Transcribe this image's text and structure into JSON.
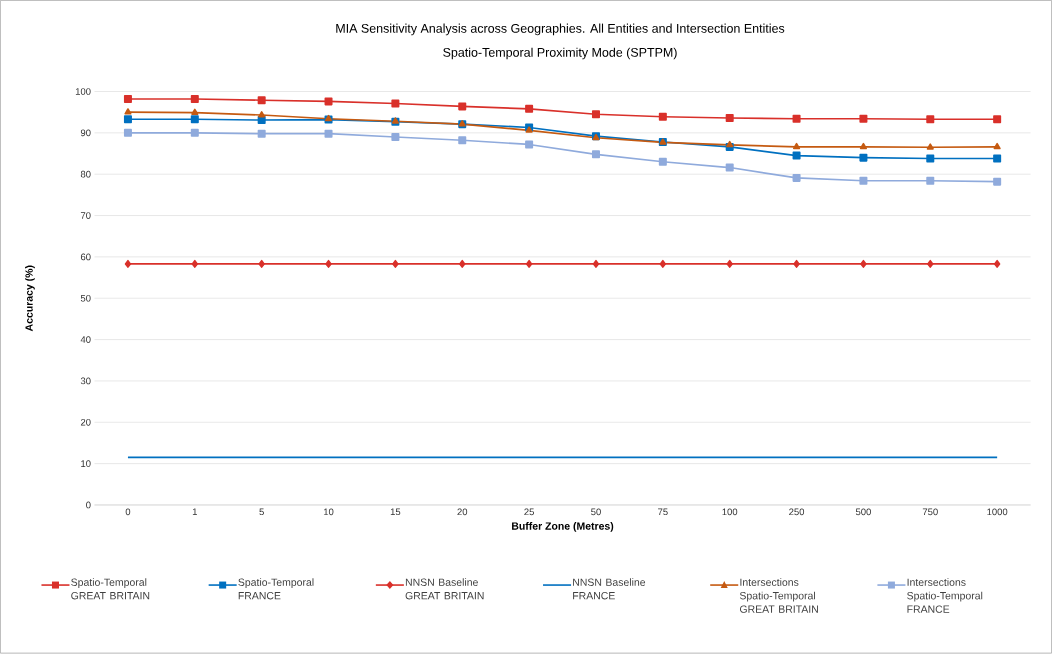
{
  "chart_data": {
    "type": "line",
    "title": "MIA Sensitivity Analysis across Geographies. All Entities and Intersection Entities",
    "subtitle": "Spatio-Temporal Proximity Mode (SPTPM)",
    "xlabel": "Buffer Zone (Metres)",
    "ylabel": "Accuracy (%)",
    "categories": [
      "0",
      "1",
      "5",
      "10",
      "15",
      "20",
      "25",
      "50",
      "75",
      "100",
      "250",
      "500",
      "750",
      "1000"
    ],
    "series": [
      {
        "name": "Spatio-Temporal GREAT BRITAIN",
        "color": "#d9302a",
        "marker": "square",
        "values": [
          98.2,
          98.2,
          97.9,
          97.6,
          97.1,
          96.4,
          95.8,
          94.5,
          93.9,
          93.6,
          93.4,
          93.4,
          93.3,
          93.3
        ]
      },
      {
        "name": "Spatio-Temporal FRANCE",
        "color": "#0070c0",
        "marker": "square",
        "values": [
          93.3,
          93.3,
          93.1,
          93.2,
          92.7,
          92.1,
          91.3,
          89.2,
          87.8,
          86.6,
          84.5,
          84.0,
          83.8,
          83.8
        ]
      },
      {
        "name": "NNSN Baseline GREAT BRITAIN",
        "color": "#d9302a",
        "marker": "diamond",
        "values": [
          58.3,
          58.3,
          58.3,
          58.3,
          58.3,
          58.3,
          58.3,
          58.3,
          58.3,
          58.3,
          58.3,
          58.3,
          58.3,
          58.3
        ]
      },
      {
        "name": "NNSN Baseline FRANCE",
        "color": "#0070c0",
        "marker": "none",
        "values": [
          11.5,
          11.5,
          11.5,
          11.5,
          11.5,
          11.5,
          11.5,
          11.5,
          11.5,
          11.5,
          11.5,
          11.5,
          11.5,
          11.5
        ]
      },
      {
        "name": "Intersections Spatio-Temporal GREAT BRITAIN",
        "color": "#c55a11",
        "marker": "triangle",
        "values": [
          95.0,
          94.9,
          94.3,
          93.4,
          92.8,
          92.1,
          90.6,
          88.8,
          87.7,
          87.1,
          86.6,
          86.6,
          86.5,
          86.6
        ]
      },
      {
        "name": "Intersections Spatio-Temporal FRANCE",
        "color": "#8faadc",
        "marker": "square",
        "values": [
          90.0,
          90.0,
          89.8,
          89.8,
          89.0,
          88.2,
          87.2,
          84.8,
          83.0,
          81.6,
          79.1,
          78.4,
          78.4,
          78.2
        ]
      }
    ],
    "ylim": [
      0,
      100
    ],
    "yticks": [
      0,
      10,
      20,
      30,
      40,
      50,
      60,
      70,
      80,
      90,
      100
    ],
    "grid": "y",
    "legend": "bottom",
    "line_style": "solid"
  }
}
